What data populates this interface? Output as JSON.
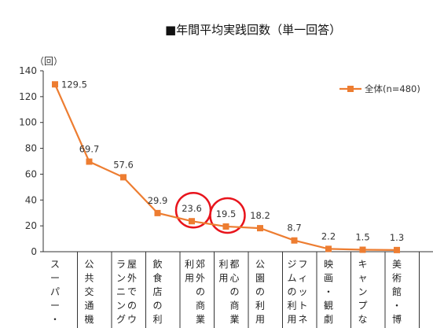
{
  "chart_data": {
    "type": "line",
    "title": "■年間平均実践回数（単一回答）",
    "unit_label": "（回）",
    "ylim": [
      0,
      140
    ],
    "yticks": [
      0,
      20,
      40,
      60,
      80,
      100,
      120,
      140
    ],
    "grid": false,
    "legend": "top-right",
    "categories": [
      "スーパー・コ",
      "公共交通機関",
      "屋外でのウオ\nランニング",
      "飲食店の利用",
      "郊外の商業施\n利用",
      "都心の商業施\n利用",
      "公園の利用",
      "フィットネス\nジムの利用",
      "映画・観劇・",
      "キャンプなど",
      "美術館・博物"
    ],
    "series": [
      {
        "name": "全体(n=480)",
        "values": [
          129.5,
          69.7,
          57.6,
          29.9,
          23.6,
          19.5,
          18.2,
          8.7,
          2.2,
          1.5,
          1.3
        ],
        "data_labels": [
          "129.5",
          "69.7",
          "57.6",
          "29.9",
          "23.6",
          "19.5",
          "18.2",
          "8.7",
          "2.2",
          "1.5",
          "1.3"
        ]
      }
    ],
    "highlighted_indices": [
      4,
      5
    ],
    "colors": {
      "series": "#ED7D31",
      "highlight": "#E8141C",
      "axis": "#333333"
    }
  }
}
